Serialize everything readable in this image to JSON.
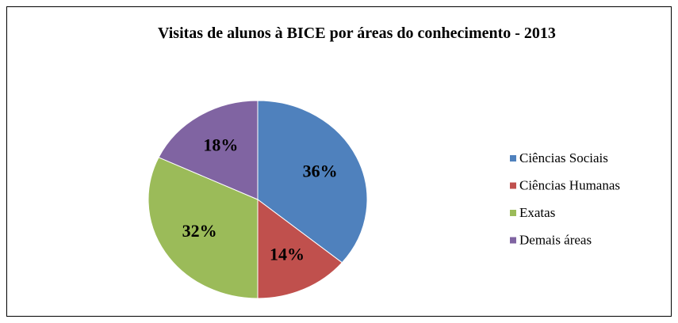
{
  "chart_data": {
    "type": "pie",
    "title": "Visitas de alunos à BICE por áreas do conhecimento - 2013",
    "categories": [
      "Ciências Sociais",
      "Ciências Humanas",
      "Exatas",
      "Demais áreas"
    ],
    "values": [
      36,
      14,
      32,
      18
    ],
    "value_labels": [
      "36%",
      "14%",
      "32%",
      "18%"
    ],
    "colors": [
      "#4f81bd",
      "#c0504d",
      "#9bbb59",
      "#8064a2"
    ],
    "legend": "right"
  }
}
